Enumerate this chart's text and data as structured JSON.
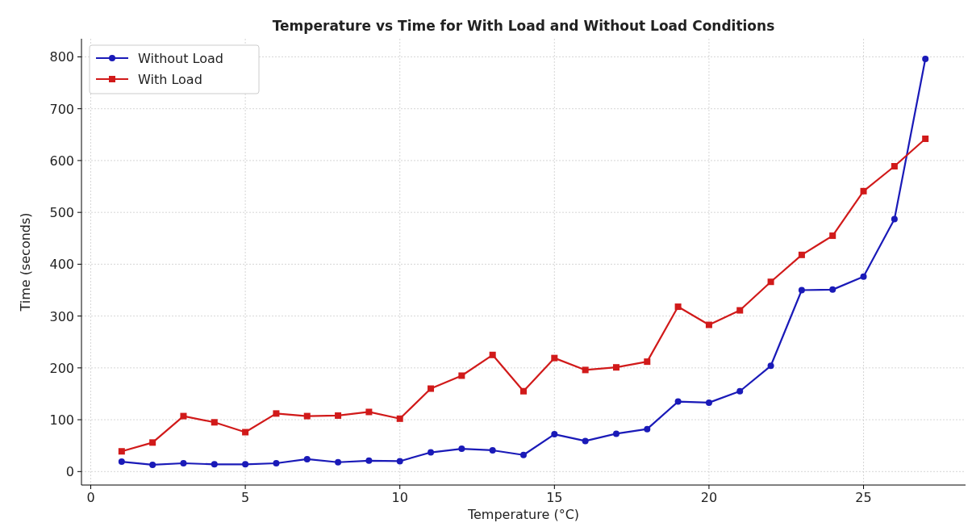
{
  "chart_data": {
    "type": "line",
    "title": "Temperature vs Time for With Load and Without Load Conditions",
    "xlabel": "Temperature (°C)",
    "ylabel": "Time (seconds)",
    "x": [
      1,
      2,
      3,
      4,
      5,
      6,
      7,
      8,
      9,
      10,
      11,
      12,
      13,
      14,
      15,
      16,
      17,
      18,
      19,
      20,
      21,
      22,
      23,
      24,
      25,
      26,
      27
    ],
    "series": [
      {
        "name": "Without Load",
        "color": "#1a1ab8",
        "marker": "circle",
        "values": [
          19,
          13,
          16,
          14,
          14,
          16,
          24,
          18,
          21,
          20,
          37,
          44,
          41,
          32,
          72,
          59,
          73,
          82,
          135,
          133,
          155,
          204,
          350,
          351,
          376,
          487,
          796
        ]
      },
      {
        "name": "With Load",
        "color": "#d11a1a",
        "marker": "square",
        "values": [
          39,
          56,
          107,
          95,
          76,
          112,
          107,
          108,
          115,
          102,
          160,
          185,
          225,
          155,
          219,
          196,
          201,
          212,
          318,
          283,
          311,
          366,
          418,
          455,
          541,
          589,
          642
        ]
      }
    ],
    "xlim": [
      -0.3,
      28.3
    ],
    "ylim": [
      -26,
      835
    ],
    "xticks": [
      0,
      5,
      10,
      15,
      20,
      25
    ],
    "yticks": [
      0,
      100,
      200,
      300,
      400,
      500,
      600,
      700,
      800
    ],
    "grid": true,
    "legend": "top left",
    "line_style": "solid"
  }
}
